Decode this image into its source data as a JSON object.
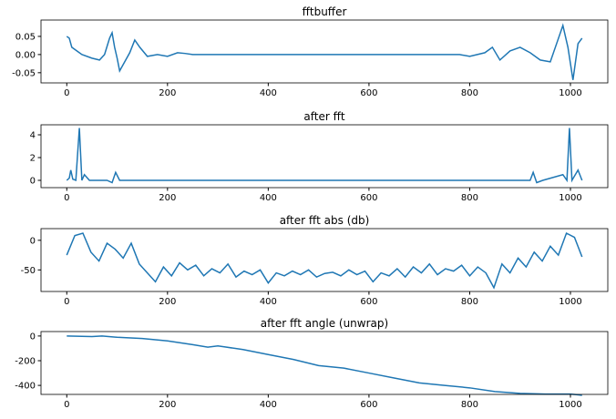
{
  "chart_data": [
    {
      "type": "line",
      "title": "fftbuffer",
      "color": "#1f77b4",
      "x": [
        0,
        5,
        10,
        20,
        30,
        50,
        65,
        75,
        85,
        90,
        95,
        100,
        105,
        115,
        125,
        135,
        145,
        160,
        180,
        200,
        220,
        235,
        250,
        400,
        600,
        780,
        800,
        830,
        845,
        860,
        880,
        900,
        920,
        940,
        960,
        975,
        985,
        995,
        1005,
        1010,
        1015,
        1023
      ],
      "values": [
        0.05,
        0.045,
        0.02,
        0.01,
        0,
        -0.01,
        -0.015,
        0,
        0.045,
        0.06,
        0.02,
        -0.01,
        -0.045,
        -0.02,
        0.005,
        0.04,
        0.02,
        -0.005,
        0,
        -0.005,
        0.005,
        0.003,
        0,
        0,
        0,
        0,
        -0.005,
        0.005,
        0.02,
        -0.015,
        0.01,
        0.02,
        0.005,
        -0.015,
        -0.02,
        0.04,
        0.08,
        0.02,
        -0.07,
        -0.02,
        0.03,
        0.045
      ],
      "xlim": [
        -51.15,
        1074.15
      ],
      "ylim": [
        -0.078,
        0.095
      ],
      "xticks": [
        0,
        200,
        400,
        600,
        800,
        1000
      ],
      "yticks": [
        -0.05,
        {
          "value": 0,
          "label": "0.00"
        },
        0.05
      ]
    },
    {
      "type": "line",
      "title": "after fft",
      "color": "#1f77b4",
      "x": [
        0,
        5,
        8,
        12,
        18,
        25,
        30,
        35,
        45,
        80,
        90,
        97,
        105,
        500,
        920,
        926,
        933,
        945,
        985,
        993,
        998,
        1003,
        1015,
        1023
      ],
      "values": [
        0,
        0.2,
        0.9,
        0.1,
        0,
        4.6,
        0,
        0.5,
        0,
        0,
        -0.2,
        0.7,
        0,
        0,
        0,
        0.7,
        -0.2,
        0,
        0.5,
        0,
        4.6,
        0,
        0.9,
        0
      ],
      "xlim": [
        -51.15,
        1074.15
      ],
      "ylim": [
        -0.64,
        4.88
      ],
      "xticks": [
        0,
        200,
        400,
        600,
        800,
        1000
      ],
      "yticks": [
        0,
        2,
        4
      ]
    },
    {
      "type": "line",
      "title": "after fft abs (db)",
      "color": "#1f77b4",
      "x": [
        0,
        16,
        32,
        48,
        64,
        80,
        96,
        112,
        128,
        144,
        160,
        176,
        192,
        208,
        224,
        240,
        256,
        272,
        288,
        304,
        320,
        336,
        352,
        368,
        384,
        400,
        416,
        432,
        448,
        464,
        480,
        496,
        512,
        528,
        544,
        560,
        576,
        592,
        608,
        624,
        640,
        656,
        672,
        688,
        704,
        720,
        736,
        752,
        768,
        784,
        800,
        816,
        832,
        848,
        864,
        880,
        896,
        912,
        928,
        944,
        960,
        976,
        992,
        1008,
        1023
      ],
      "values": [
        -25,
        8,
        12,
        -20,
        -35,
        -5,
        -15,
        -30,
        -5,
        -40,
        -55,
        -70,
        -45,
        -60,
        -38,
        -50,
        -42,
        -60,
        -48,
        -55,
        -40,
        -62,
        -52,
        -58,
        -50,
        -72,
        -55,
        -60,
        -52,
        -58,
        -50,
        -62,
        -56,
        -54,
        -60,
        -50,
        -58,
        -52,
        -70,
        -55,
        -60,
        -48,
        -62,
        -45,
        -55,
        -40,
        -58,
        -48,
        -52,
        -42,
        -60,
        -45,
        -55,
        -80,
        -40,
        -55,
        -30,
        -45,
        -20,
        -35,
        -10,
        -25,
        12,
        5,
        -28
      ],
      "xlim": [
        -51.15,
        1074.15
      ],
      "ylim": [
        -86.4,
        19.7
      ],
      "xticks": [
        0,
        200,
        400,
        600,
        800,
        1000
      ],
      "yticks": [
        -50,
        0
      ]
    },
    {
      "type": "line",
      "title": "after fft angle (unwrap)",
      "color": "#1f77b4",
      "x": [
        0,
        50,
        70,
        100,
        150,
        200,
        250,
        280,
        300,
        350,
        400,
        450,
        500,
        550,
        600,
        650,
        700,
        750,
        800,
        850,
        900,
        950,
        1000,
        1023
      ],
      "values": [
        0,
        -5,
        0,
        -10,
        -20,
        -40,
        -70,
        -90,
        -80,
        -110,
        -150,
        -190,
        -240,
        -260,
        -300,
        -340,
        -380,
        -400,
        -420,
        -450,
        -465,
        -470,
        -470,
        -480
      ],
      "xlim": [
        -51.15,
        1074.15
      ],
      "ylim": [
        -473,
        36
      ],
      "xticks": [
        0,
        200,
        400,
        600,
        800,
        1000
      ],
      "yticks": [
        -400,
        -200,
        0
      ]
    }
  ]
}
